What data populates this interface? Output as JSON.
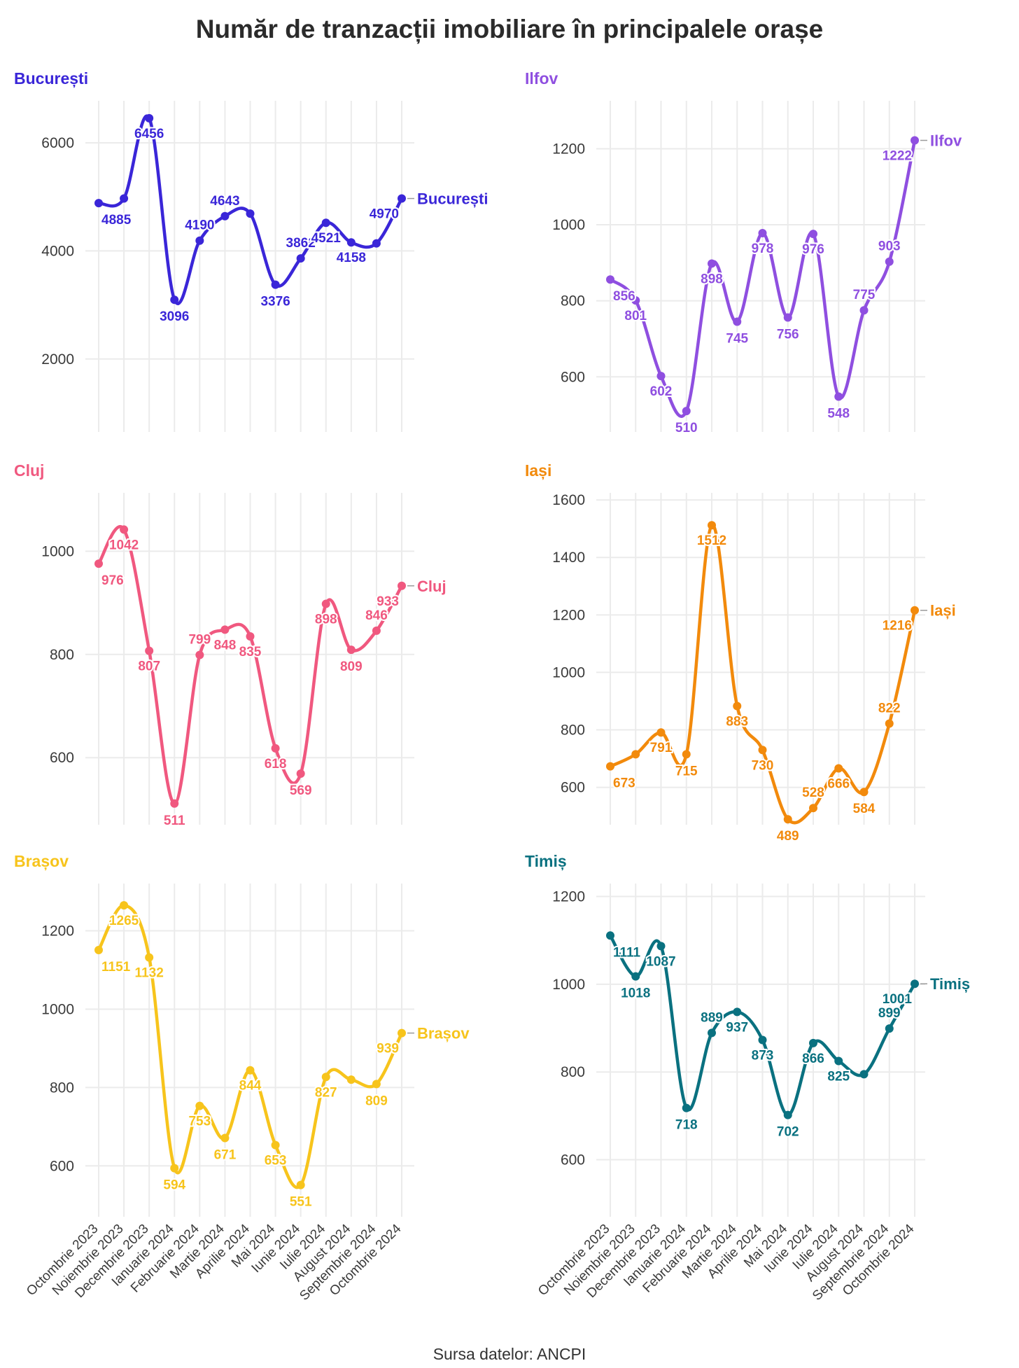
{
  "title": "Număr de tranzacții imobiliare în principalele orașe",
  "caption": "Sursa datelor: ANCPI",
  "chart_data": {
    "type": "line",
    "title": "Număr de tranzacții imobiliare în principalele orașe",
    "categories": [
      "Octombrie 2023",
      "Noiembrie 2023",
      "Decembrie 2023",
      "Ianuarie 2024",
      "Februarie 2024",
      "Martie 2024",
      "Aprilie 2024",
      "Mai 2024",
      "Iunie 2024",
      "Iulie 2024",
      "August 2024",
      "Septembrie 2024",
      "Octombrie 2024"
    ],
    "grid": true,
    "legend": "none",
    "panels": [
      {
        "name": "București",
        "color": "#3a26d8",
        "ylim": [
          650,
          6700
        ],
        "yticks": [
          2000,
          4000,
          6000
        ],
        "values": [
          4885,
          4970,
          6456,
          3096,
          4190,
          4643,
          4690,
          3376,
          3862,
          4521,
          4158,
          4140,
          4970
        ],
        "labels": [
          "4885",
          "",
          "6456",
          "3096",
          "4190",
          "4643",
          "",
          "3376",
          "3862",
          "4521",
          "4158",
          "",
          "4970"
        ]
      },
      {
        "name": "Ilfov",
        "color": "#8f4fe0",
        "ylim": [
          455,
          1315
        ],
        "yticks": [
          600,
          800,
          1000,
          1200
        ],
        "values": [
          856,
          801,
          602,
          510,
          898,
          745,
          978,
          756,
          976,
          548,
          775,
          903,
          1222
        ],
        "labels": [
          "856",
          "801",
          "602",
          "510",
          "898",
          "745",
          "978",
          "756",
          "976",
          "548",
          "775",
          "903",
          "1222"
        ]
      },
      {
        "name": "Cluj",
        "color": "#f0587f",
        "ylim": [
          470,
          1105
        ],
        "yticks": [
          600,
          800,
          1000
        ],
        "values": [
          976,
          1042,
          807,
          511,
          799,
          848,
          835,
          618,
          569,
          898,
          809,
          846,
          933
        ],
        "labels": [
          "976",
          "1042",
          "807",
          "511",
          "799",
          "848",
          "835",
          "618",
          "569",
          "898",
          "809",
          "846",
          "933"
        ]
      },
      {
        "name": "Iași",
        "color": "#f28a0c",
        "ylim": [
          470,
          1610
        ],
        "yticks": [
          600,
          800,
          1000,
          1200,
          1400,
          1600
        ],
        "values": [
          673,
          715,
          791,
          715,
          1512,
          883,
          730,
          489,
          528,
          666,
          584,
          822,
          1216
        ],
        "labels": [
          "673",
          "",
          "791",
          "715",
          "1512",
          "883",
          "730",
          "489",
          "528",
          "666",
          "584",
          "822",
          "1216"
        ]
      },
      {
        "name": "Brașov",
        "color": "#f7c41c",
        "ylim": [
          470,
          1310
        ],
        "yticks": [
          600,
          800,
          1000,
          1200
        ],
        "values": [
          1151,
          1265,
          1132,
          594,
          753,
          671,
          844,
          653,
          551,
          827,
          820,
          809,
          939
        ],
        "labels": [
          "1151",
          "1265",
          "1132",
          "594",
          "753",
          "671",
          "844",
          "653",
          "551",
          "827",
          "",
          "809",
          "939"
        ]
      },
      {
        "name": "Timiș",
        "color": "#0a7180",
        "ylim": [
          470,
          1220
        ],
        "yticks": [
          600,
          800,
          1000,
          1200
        ],
        "values": [
          1111,
          1018,
          1087,
          718,
          889,
          937,
          873,
          702,
          866,
          825,
          795,
          899,
          1001
        ],
        "labels": [
          "1111",
          "1018",
          "1087",
          "718",
          "889",
          "937",
          "873",
          "702",
          "866",
          "825",
          "",
          "899",
          "1001"
        ]
      }
    ]
  }
}
